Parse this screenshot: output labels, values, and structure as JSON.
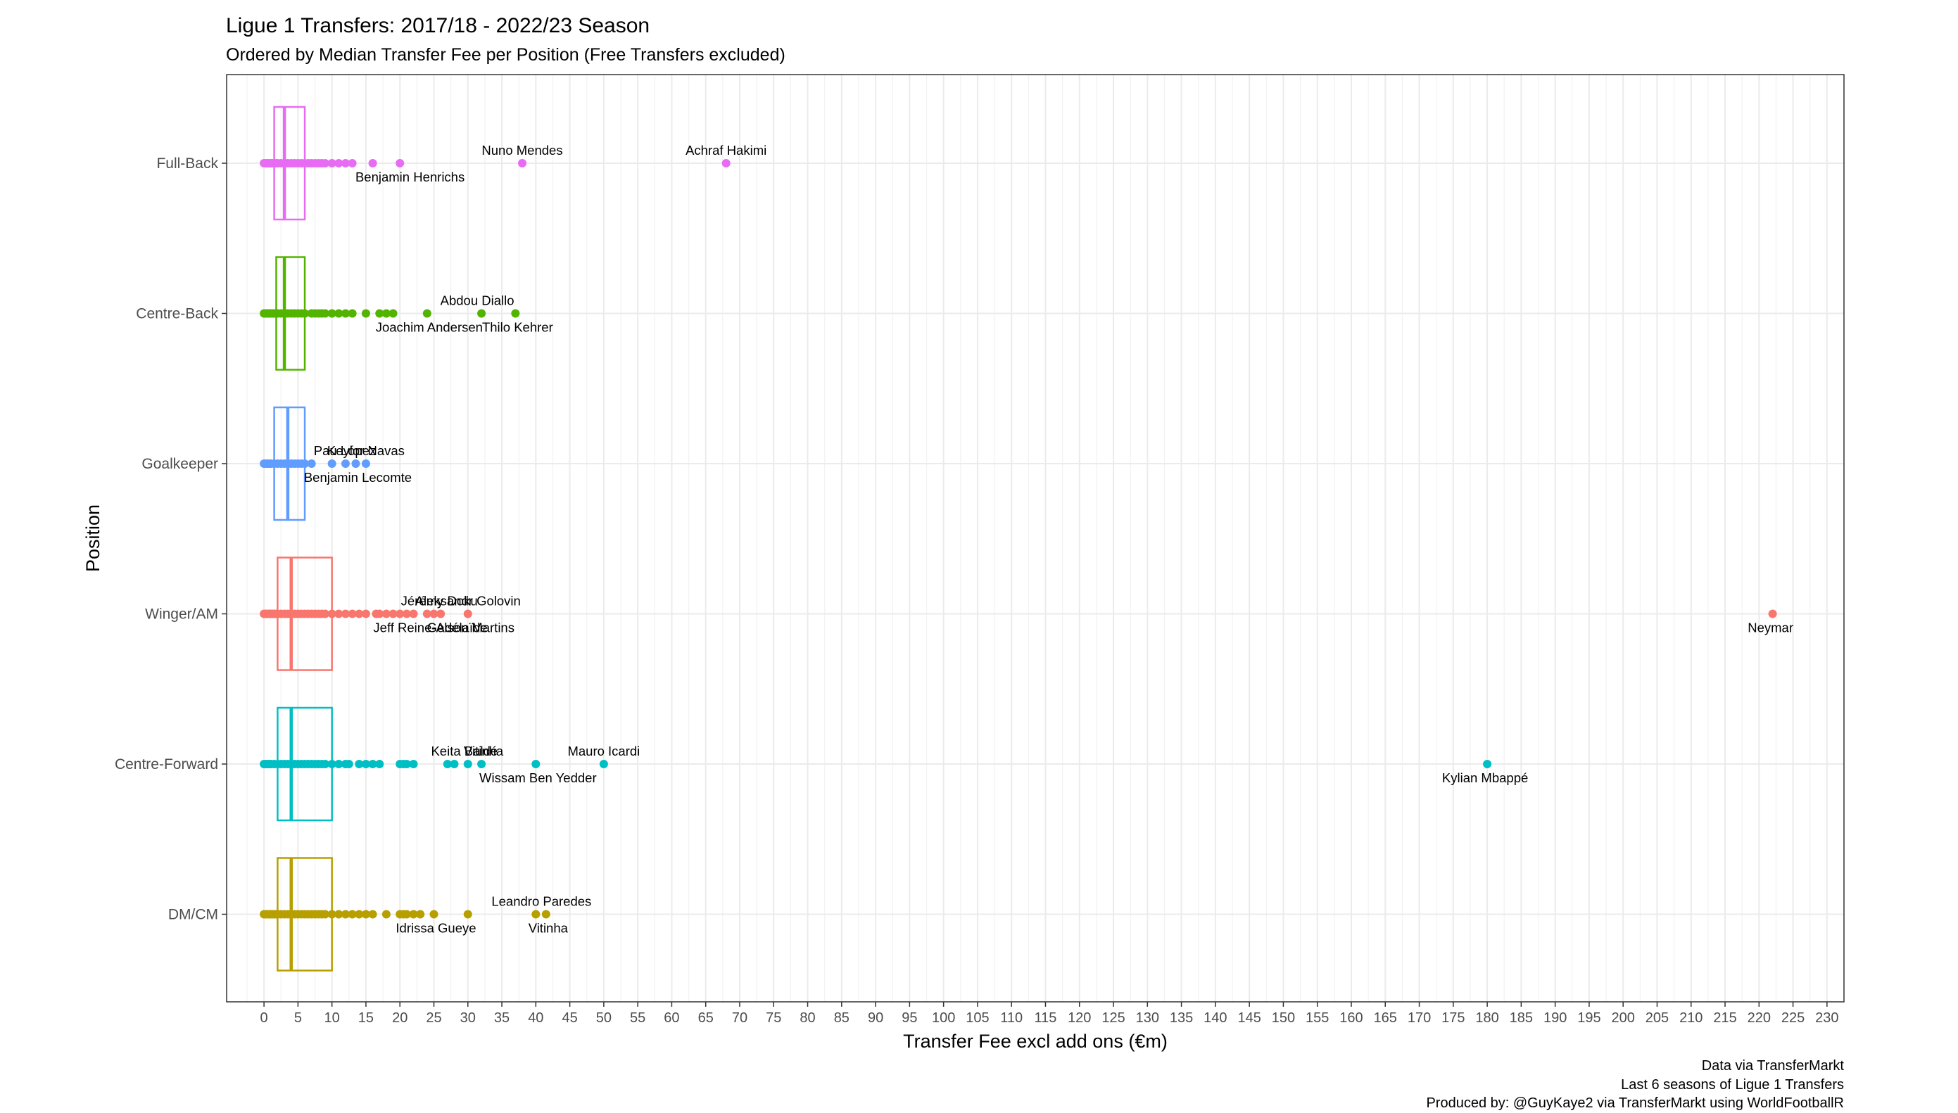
{
  "chart_data": {
    "type": "boxplot",
    "title": "Ligue 1 Transfers: 2017/18 - 2022/23 Season",
    "subtitle": "Ordered by Median Transfer Fee per Position (Free Transfers excluded)",
    "xlabel": "Transfer Fee excl add ons (€m)",
    "ylabel": "Position",
    "xlim": [
      -5.5,
      232.5
    ],
    "xticks": [
      0,
      5,
      10,
      15,
      20,
      25,
      30,
      35,
      40,
      45,
      50,
      55,
      60,
      65,
      70,
      75,
      80,
      85,
      90,
      95,
      100,
      105,
      110,
      115,
      120,
      125,
      130,
      135,
      140,
      145,
      150,
      155,
      160,
      165,
      170,
      175,
      180,
      185,
      190,
      195,
      200,
      205,
      210,
      215,
      220,
      225,
      230
    ],
    "grid": true,
    "legend": "none",
    "caption": [
      "Data via TransferMarkt",
      "Last 6 seasons of Ligue 1 Transfers",
      "Produced by: @GuyKaye2 via TransferMarkt using WorldFootballR"
    ],
    "categories": [
      "Full-Back",
      "Centre-Back",
      "Goalkeeper",
      "Winger/AM",
      "Centre-Forward",
      "DM/CM"
    ],
    "series": [
      {
        "name": "Full-Back",
        "color": "#E76BF3",
        "box": {
          "q1": 1.5,
          "median": 3.0,
          "q3": 6.0
        },
        "points": [
          0,
          0.3,
          0.5,
          0.8,
          1,
          1.2,
          1.5,
          1.8,
          2,
          2.5,
          3,
          3.5,
          4,
          4.5,
          5,
          5.5,
          6,
          6.5,
          7,
          7.5,
          8,
          8.5,
          9,
          10,
          11,
          12,
          13,
          16,
          20,
          38,
          68
        ],
        "labels": [
          {
            "text": "Nuno Mendes",
            "x": 38
          },
          {
            "text": "Achraf Hakimi",
            "x": 68
          },
          {
            "text": "Benjamin Henrichs",
            "x": 16
          }
        ]
      },
      {
        "name": "Centre-Back",
        "color": "#53B400",
        "box": {
          "q1": 1.8,
          "median": 3.0,
          "q3": 6.0
        },
        "points": [
          0,
          0.3,
          0.5,
          0.8,
          1,
          1.2,
          1.5,
          1.8,
          2,
          2.5,
          3,
          3.5,
          4,
          4.5,
          5,
          5.5,
          6,
          7,
          7.5,
          8,
          8.5,
          9,
          10,
          11,
          12,
          13,
          15,
          17,
          18,
          19,
          24,
          32,
          37
        ],
        "labels": [
          {
            "text": "Abdou Diallo",
            "x": 32
          },
          {
            "text": "Thilo Kehrer",
            "x": 37
          },
          {
            "text": "Joachim Andersen",
            "x": 24
          }
        ]
      },
      {
        "name": "Goalkeeper",
        "color": "#619CFF",
        "box": {
          "q1": 1.5,
          "median": 3.5,
          "q3": 6.0
        },
        "points": [
          0,
          0.3,
          0.5,
          0.8,
          1,
          1.5,
          2,
          2.5,
          3,
          3.5,
          4,
          4.5,
          5,
          5.5,
          6,
          7,
          10,
          12,
          13.5,
          15
        ],
        "labels": [
          {
            "text": "Pau López",
            "x": 12
          },
          {
            "text": "Keylor Navas",
            "x": 15
          },
          {
            "text": "Benjamin Lecomte",
            "x": 13.5
          }
        ]
      },
      {
        "name": "Winger/AM",
        "color": "#F8766D",
        "box": {
          "q1": 2.0,
          "median": 4.0,
          "q3": 10.0
        },
        "points": [
          0,
          0.3,
          0.5,
          0.8,
          1,
          1.2,
          1.5,
          1.8,
          2,
          2.5,
          3,
          3.5,
          4,
          4.5,
          5,
          5.5,
          6,
          6.5,
          7,
          7.5,
          8,
          8.5,
          9,
          10,
          11,
          12,
          13,
          14,
          15,
          16.5,
          17,
          18,
          19,
          20,
          21,
          22,
          24,
          25,
          26,
          30,
          222
        ],
        "labels": [
          {
            "text": "Jérémy Doku",
            "x": 26
          },
          {
            "text": "Aleksandr Golovin",
            "x": 30
          },
          {
            "text": "Jeff Reine-Adélaïde",
            "x": 25
          },
          {
            "text": "Gelson Martins",
            "x": 30
          },
          {
            "text": "Neymar",
            "x": 222
          }
        ]
      },
      {
        "name": "Centre-Forward",
        "color": "#00BFC4",
        "box": {
          "q1": 2.0,
          "median": 4.0,
          "q3": 10.0
        },
        "points": [
          0,
          0.3,
          0.5,
          0.8,
          1,
          1.5,
          2,
          2.5,
          3,
          3.5,
          4,
          4.5,
          5,
          5.5,
          6,
          6.5,
          7,
          7.5,
          8,
          8.5,
          9,
          10,
          11,
          12,
          12.5,
          14,
          15,
          16,
          17,
          20,
          20.5,
          21,
          22,
          27,
          28,
          30,
          32,
          40,
          50,
          180
        ],
        "labels": [
          {
            "text": "Keita Baldé",
            "x": 30
          },
          {
            "text": "Vitinha",
            "x": 32
          },
          {
            "text": "Mauro Icardi",
            "x": 50
          },
          {
            "text": "Wissam Ben Yedder",
            "x": 40
          },
          {
            "text": "Kylian Mbappé",
            "x": 180
          }
        ]
      },
      {
        "name": "DM/CM",
        "color": "#B79F00",
        "box": {
          "q1": 2.0,
          "median": 4.0,
          "q3": 10.0
        },
        "points": [
          0,
          0.3,
          0.5,
          0.8,
          1,
          1.2,
          1.5,
          1.8,
          2,
          2.5,
          3,
          3.5,
          4,
          4.5,
          5,
          5.5,
          6,
          6.5,
          7,
          7.5,
          8,
          8.5,
          9,
          10,
          11,
          12,
          13,
          14,
          15,
          16,
          18,
          20,
          20.5,
          21,
          22,
          23,
          25,
          30,
          40,
          41.5
        ],
        "labels": [
          {
            "text": "Leandro Paredes",
            "x": 40
          },
          {
            "text": "Idrissa Gueye",
            "x": 25
          },
          {
            "text": "Vitinha",
            "x": 41.5
          }
        ]
      }
    ]
  }
}
